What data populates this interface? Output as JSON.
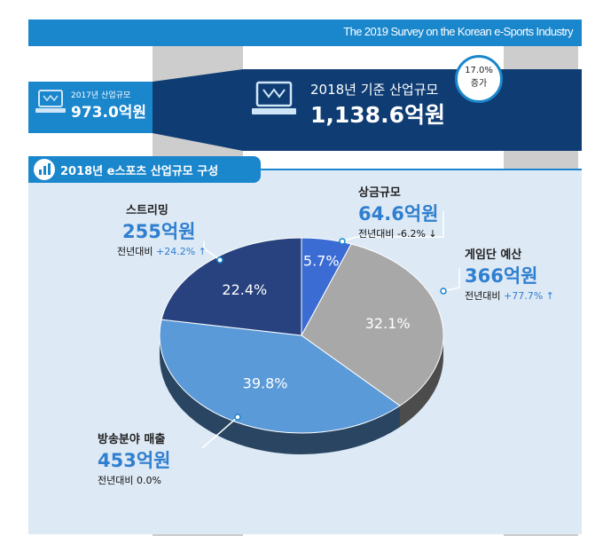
{
  "header": {
    "title": "The 2019 Survey on the Korean e-Sports Industry"
  },
  "summary": {
    "prev": {
      "label": "2017년 산업규모",
      "value": "973.0억원"
    },
    "curr": {
      "label": "2018년 기준 산업규모",
      "value": "1,138.6억원"
    },
    "growth": {
      "pct": "17.0%",
      "label": "증가"
    }
  },
  "section": {
    "title": "2018년 e스포츠 산업규모 구성"
  },
  "colors": {
    "accent": "#1a86cc",
    "navy": "#0f3d73",
    "gray": "#a8a8a8",
    "light_blue": "#5b9ad8",
    "dark_blue": "#27427e",
    "mid_blue": "#3a6cd4"
  },
  "chart_data": {
    "type": "pie",
    "title": "2018년 e스포츠 산업규모 구성",
    "categories": [
      "상금규모",
      "게임단 예산",
      "방송분야 매출",
      "스트리밍"
    ],
    "values": [
      5.7,
      32.1,
      39.8,
      22.4
    ],
    "value_labels": [
      "5.7%",
      "32.1%",
      "39.8%",
      "22.4%"
    ],
    "amounts": [
      "64.6억원",
      "366억원",
      "453억원",
      "255억원"
    ],
    "yoy_label": "전년대비",
    "yoy": [
      "-6.2% ↓",
      "+77.7% ↑",
      "0.0%",
      "+24.2% ↑"
    ],
    "colors": [
      "#3a6cd4",
      "#a8a8a8",
      "#5b9ad8",
      "#27427e"
    ]
  }
}
